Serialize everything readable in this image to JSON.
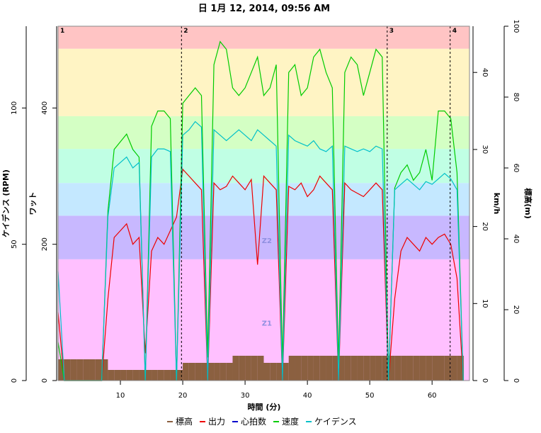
{
  "chart_data": {
    "type": "line",
    "title": "日 1月 12, 2014, 09:56 AM",
    "xlabel": "時間 (分)",
    "ylabel": "ワット",
    "y2label": "km/h",
    "y3label": "ケイデンス (RPM)",
    "y4label": "標高(m)",
    "x": [
      0,
      1,
      2,
      3,
      4,
      5,
      6,
      7,
      8,
      9,
      10,
      11,
      12,
      13,
      14,
      15,
      16,
      17,
      18,
      19,
      20,
      21,
      22,
      23,
      24,
      25,
      26,
      27,
      28,
      29,
      30,
      31,
      32,
      33,
      34,
      35,
      36,
      37,
      38,
      39,
      40,
      41,
      42,
      43,
      44,
      45,
      46,
      47,
      48,
      49,
      50,
      51,
      52,
      53,
      54,
      55,
      56,
      57,
      58,
      59,
      60,
      61,
      62,
      63,
      64,
      65
    ],
    "xlim": [
      0,
      66
    ],
    "xticks": [
      10,
      20,
      30,
      40,
      50,
      60
    ],
    "ylim": [
      0,
      520
    ],
    "yticks": [
      0,
      200,
      400
    ],
    "y2lim": [
      0,
      46
    ],
    "y2ticks": [
      0,
      10,
      20,
      30,
      40
    ],
    "y3lim": [
      0,
      130
    ],
    "y3ticks": [
      0,
      50,
      100
    ],
    "y4lim": [
      0,
      100
    ],
    "y4ticks": [
      0,
      20,
      40,
      60,
      80,
      100
    ],
    "zones": [
      {
        "name": "Z1",
        "from": 0,
        "to": 178,
        "color": "#ffc0ff"
      },
      {
        "name": "Z2",
        "from": 178,
        "to": 242,
        "color": "#c8b8ff"
      },
      {
        "from": 242,
        "to": 290,
        "color": "#c4e8ff"
      },
      {
        "from": 290,
        "to": 340,
        "color": "#c0ffe4"
      },
      {
        "from": 340,
        "to": 388,
        "color": "#d4ffc4"
      },
      {
        "from": 388,
        "to": 487,
        "color": "#fff4c4"
      },
      {
        "from": 487,
        "to": 520,
        "color": "#ffc4c4"
      }
    ],
    "intervals": [
      {
        "label": "1",
        "x": 0
      },
      {
        "label": "2",
        "x": 19.8
      },
      {
        "label": "3",
        "x": 52.8
      },
      {
        "label": "4",
        "x": 62.9
      }
    ],
    "series": [
      {
        "name": "標高",
        "color": "#8b6040",
        "axis": "y4",
        "style": "step",
        "values": [
          6,
          6,
          6,
          6,
          6,
          6,
          6,
          6,
          3,
          3,
          3,
          3,
          3,
          3,
          3,
          3,
          3,
          3,
          3,
          3,
          5,
          5,
          5,
          5,
          5,
          5,
          5,
          5,
          7,
          7,
          7,
          7,
          7,
          5,
          5,
          5,
          5,
          7,
          7,
          7,
          7,
          7,
          7,
          7,
          7,
          7,
          7,
          7,
          7,
          7,
          7,
          7,
          7,
          7,
          7,
          7,
          7,
          7,
          7,
          7,
          7,
          7,
          7,
          7,
          7,
          7
        ]
      },
      {
        "name": "出力",
        "color": "#ee0000",
        "axis": "y",
        "values": [
          100,
          0,
          0,
          0,
          0,
          0,
          0,
          0,
          120,
          210,
          220,
          230,
          200,
          210,
          40,
          190,
          210,
          200,
          220,
          240,
          310,
          300,
          290,
          280,
          0,
          290,
          280,
          285,
          300,
          290,
          280,
          295,
          170,
          300,
          290,
          280,
          0,
          285,
          280,
          290,
          270,
          280,
          300,
          290,
          280,
          0,
          290,
          280,
          275,
          270,
          280,
          290,
          280,
          0,
          120,
          190,
          210,
          200,
          190,
          210,
          200,
          210,
          215,
          200,
          150,
          0
        ]
      },
      {
        "name": "心拍数",
        "color": "#0000cc",
        "axis": "y",
        "values": [
          null,
          null,
          null,
          null,
          null,
          null,
          null,
          null,
          null,
          null,
          null,
          null,
          null,
          null,
          null,
          null,
          null,
          null,
          null,
          null,
          null,
          null,
          null,
          null,
          null,
          null,
          null,
          null,
          null,
          null,
          null,
          null,
          null,
          null,
          null,
          null,
          null,
          null,
          null,
          null,
          null,
          null,
          null,
          null,
          null,
          null,
          null,
          null,
          null,
          null,
          null,
          null,
          null,
          null,
          null,
          null,
          null,
          null,
          null,
          null,
          null,
          null,
          null,
          null,
          null,
          null
        ]
      },
      {
        "name": "速度",
        "color": "#00cc00",
        "axis": "y2",
        "values": [
          5,
          0,
          0,
          0,
          0,
          0,
          0,
          0,
          22,
          30,
          31,
          32,
          30,
          29,
          0,
          33,
          35,
          35,
          34,
          0,
          36,
          37,
          38,
          37,
          3,
          41,
          44,
          43,
          38,
          37,
          38,
          40,
          42,
          37,
          38,
          41,
          2,
          40,
          41,
          37,
          38,
          42,
          43,
          40,
          38,
          2,
          40,
          42,
          41,
          37,
          40,
          43,
          42,
          0,
          25,
          27,
          28,
          26,
          27,
          30,
          26,
          35,
          35,
          34,
          27,
          0
        ]
      },
      {
        "name": "ケイデンス",
        "color": "#00c0c8",
        "axis": "y3",
        "values": [
          40,
          0,
          0,
          0,
          0,
          0,
          0,
          0,
          60,
          78,
          80,
          82,
          78,
          80,
          0,
          82,
          85,
          85,
          84,
          0,
          90,
          92,
          95,
          93,
          0,
          92,
          90,
          88,
          90,
          92,
          90,
          88,
          92,
          90,
          88,
          86,
          0,
          90,
          88,
          87,
          86,
          88,
          85,
          84,
          86,
          0,
          86,
          85,
          84,
          85,
          84,
          86,
          85,
          0,
          70,
          72,
          74,
          72,
          70,
          73,
          72,
          74,
          76,
          74,
          70,
          0
        ]
      }
    ]
  }
}
